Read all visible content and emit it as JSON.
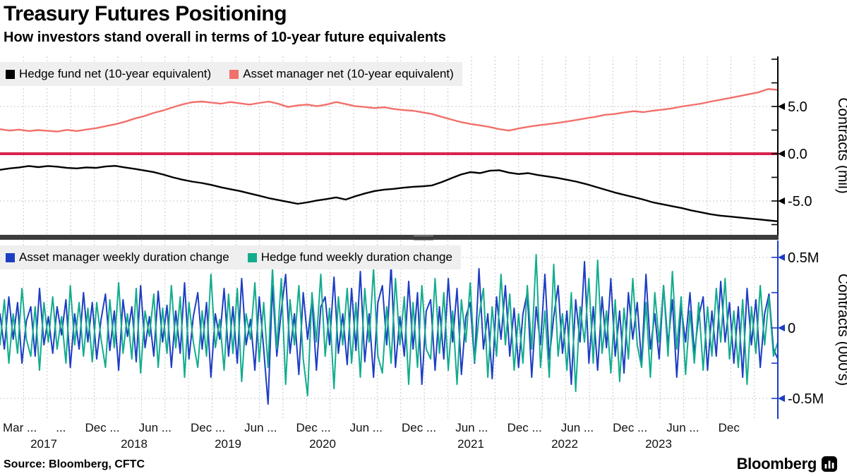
{
  "header": {
    "title": "Treasury Futures Positioning",
    "subtitle": "How investors stand overall in terms of 10-year future equivalents"
  },
  "footer": {
    "source": "Source: Bloomberg, CFTC",
    "brand": "Bloomberg",
    "brand_icon": "bloomberg-chart-icon"
  },
  "colors": {
    "zero_line_red": "#d8234d",
    "hedge_fund_black": "#000000",
    "asset_manager_salmon": "#f2706b",
    "asset_manager_blue": "#1d3dc4",
    "hedge_fund_teal": "#12ac8d",
    "grid": "#c9c9c9",
    "legend_bg": "#efefef",
    "separator": "#3c3c3c"
  },
  "x_axis": {
    "tick_labels": [
      "Mar ...",
      "...",
      "Dec ...",
      "Jun ...",
      "Dec ...",
      "Jun ...",
      "Dec ...",
      "Jun ...",
      "Dec ...",
      "Jun ...",
      "Dec ...",
      "Jun ...",
      "Dec ...",
      "Jun ...",
      "Dec"
    ],
    "years": [
      {
        "label": "2017",
        "x": 62
      },
      {
        "label": "2018",
        "x": 190
      },
      {
        "label": "2019",
        "x": 323
      },
      {
        "label": "2020",
        "x": 457
      },
      {
        "label": "2021",
        "x": 667
      },
      {
        "label": "2022",
        "x": 800
      },
      {
        "label": "2023",
        "x": 933
      }
    ],
    "range_note": "Mar 2017 - Dec 2023"
  },
  "chart_data": [
    {
      "type": "line",
      "panel": "top",
      "ylabel": "Contracts (mil)",
      "ylim": [
        -8.58,
        10.3
      ],
      "yticks": [
        {
          "label": "5.0",
          "value": 5
        },
        {
          "label": "0.0",
          "value": 0
        },
        {
          "label": "-5.0",
          "value": -5
        }
      ],
      "minor_tick_step": 2.5,
      "grid_values": [
        5,
        -5
      ],
      "zero_line": {
        "value": 0,
        "color": "#d8234d",
        "width": 4
      },
      "axis_color": "#000000",
      "legend_position": "top-left",
      "x_start": "2017-03",
      "x_end": "2023-12",
      "x_step": "monthly",
      "series": [
        {
          "name": "Hedge fund net (10-year equivalent)",
          "color": "#000000",
          "width": 2.4,
          "values": [
            -1.7,
            -1.55,
            -1.45,
            -1.3,
            -1.42,
            -1.3,
            -1.37,
            -1.5,
            -1.55,
            -1.45,
            -1.5,
            -1.35,
            -1.28,
            -1.45,
            -1.6,
            -1.77,
            -1.95,
            -2.2,
            -2.5,
            -2.75,
            -2.95,
            -3.1,
            -3.3,
            -3.55,
            -3.75,
            -3.95,
            -4.2,
            -4.45,
            -4.7,
            -4.9,
            -5.1,
            -5.3,
            -5.15,
            -4.95,
            -4.8,
            -4.62,
            -4.85,
            -4.5,
            -4.2,
            -3.95,
            -3.8,
            -3.72,
            -3.6,
            -3.5,
            -3.45,
            -3.35,
            -3.0,
            -2.6,
            -2.2,
            -1.95,
            -2.05,
            -1.8,
            -1.75,
            -2.0,
            -2.15,
            -2.05,
            -2.25,
            -2.4,
            -2.55,
            -2.75,
            -2.95,
            -3.2,
            -3.5,
            -3.8,
            -4.1,
            -4.35,
            -4.6,
            -4.85,
            -5.15,
            -5.35,
            -5.55,
            -5.75,
            -6.0,
            -6.2,
            -6.4,
            -6.55,
            -6.65,
            -6.75,
            -6.85,
            -6.95,
            -7.05,
            -7.15
          ]
        },
        {
          "name": "Asset manager net (10-year equivalent)",
          "color": "#f2706b",
          "width": 2.4,
          "values": [
            2.6,
            2.45,
            2.55,
            2.4,
            2.5,
            2.42,
            2.35,
            2.52,
            2.4,
            2.56,
            2.7,
            2.92,
            3.12,
            3.38,
            3.72,
            3.98,
            4.32,
            4.58,
            4.92,
            5.22,
            5.45,
            5.52,
            5.42,
            5.3,
            5.47,
            5.33,
            5.2,
            5.37,
            5.52,
            5.28,
            4.95,
            5.12,
            5.2,
            5.03,
            5.2,
            5.47,
            5.25,
            5.03,
            4.95,
            4.83,
            4.92,
            4.73,
            4.62,
            4.55,
            4.38,
            4.2,
            3.9,
            3.62,
            3.35,
            3.15,
            3.0,
            2.83,
            2.6,
            2.45,
            2.67,
            2.85,
            3.0,
            3.12,
            3.25,
            3.4,
            3.57,
            3.75,
            3.9,
            4.12,
            4.2,
            4.37,
            4.5,
            4.4,
            4.55,
            4.67,
            4.8,
            5.0,
            5.15,
            5.3,
            5.52,
            5.7,
            5.9,
            6.1,
            6.3,
            6.5,
            6.85,
            6.75
          ]
        }
      ]
    },
    {
      "type": "line",
      "panel": "bottom",
      "ylabel": "Contracts (000's)",
      "ylim": [
        -0.645,
        0.62
      ],
      "yticks": [
        {
          "label": "0.5M",
          "value": 0.5
        },
        {
          "label": "0",
          "value": 0
        },
        {
          "label": "-0.5M",
          "value": -0.5
        }
      ],
      "minor_tick_step": 0.25,
      "grid_values": [
        0.5,
        0,
        -0.5
      ],
      "zero_line": null,
      "axis_color": "#1d3dc4",
      "legend_position": "top-left",
      "x_start": "2017-03",
      "x_end": "2023-12",
      "x_step": "biweekly",
      "series": [
        {
          "name": "Asset manager weekly duration change",
          "color": "#1d3dc4",
          "width": 2,
          "values": [
            0.1,
            -0.15,
            0.22,
            -0.08,
            0.18,
            -0.25,
            0.05,
            0.15,
            -0.2,
            0.28,
            -0.12,
            0.08,
            -0.18,
            0.15,
            -0.05,
            0.2,
            -0.28,
            0.1,
            -0.15,
            0.25,
            -0.1,
            0.18,
            -0.22,
            0.06,
            0.24,
            -0.16,
            0.12,
            -0.3,
            0.2,
            -0.06,
            0.15,
            -0.24,
            0.3,
            -0.14,
            0.08,
            -0.2,
            0.26,
            -0.1,
            0.16,
            -0.28,
            0.12,
            -0.18,
            0.32,
            -0.22,
            0.08,
            0.25,
            -0.15,
            0.18,
            -0.35,
            0.1,
            -0.08,
            0.28,
            -0.2,
            0.15,
            -0.25,
            0.35,
            -0.12,
            0.06,
            -0.3,
            0.22,
            -0.15,
            -0.54,
            0.3,
            -0.2,
            0.12,
            0.38,
            -0.18,
            0.1,
            -0.33,
            0.25,
            -0.08,
            0.2,
            -0.3,
            0.15,
            0.22,
            -0.12,
            0.36,
            -0.18,
            0.1,
            -0.26,
            0.28,
            -0.16,
            0.4,
            -0.24,
            0.1,
            -0.35,
            0.18,
            0.3,
            -0.12,
            0.45,
            -0.28,
            0.08,
            -0.2,
            0.33,
            -0.15,
            0.25,
            -0.4,
            0.12,
            0.2,
            -0.3,
            0.15,
            -0.22,
            0.35,
            -0.1,
            0.28,
            -0.33,
            0.08,
            0.18,
            -0.25,
            0.42,
            -0.15,
            0.1,
            -0.36,
            0.22,
            -0.08,
            0.3,
            -0.2,
            0.14,
            -0.28,
            0.1,
            0.25,
            -0.35,
            0.15,
            -0.12,
            0.38,
            -0.22,
            0.08,
            0.3,
            -0.18,
            0.12,
            -0.4,
            0.2,
            -0.1,
            0.47,
            -0.25,
            0.15,
            -0.3,
            0.22,
            -0.14,
            0.35,
            -0.2,
            0.12,
            -0.32,
            0.25,
            -0.08,
            0.18,
            -0.26,
            0.38,
            -0.15,
            0.1,
            -0.22,
            0.3,
            -0.12,
            0.2,
            -0.35,
            0.15,
            -0.1,
            0.25,
            -0.18,
            0.08,
            0.22,
            -0.3,
            0.12,
            -0.2,
            0.33,
            -0.1,
            0.18,
            -0.25,
            0.15,
            -0.35,
            0.28,
            -0.12,
            0.2,
            -0.28,
            0.1,
            0.24,
            -0.15,
            -0.22
          ]
        },
        {
          "name": "Hedge fund weekly duration change",
          "color": "#12ac8d",
          "width": 2,
          "values": [
            -0.12,
            0.2,
            -0.25,
            0.1,
            -0.18,
            0.28,
            -0.08,
            -0.2,
            0.15,
            -0.3,
            0.18,
            -0.1,
            0.22,
            -0.15,
            0.08,
            -0.25,
            0.3,
            -0.12,
            0.18,
            -0.2,
            0.14,
            -0.24,
            0.18,
            -0.08,
            -0.28,
            0.2,
            -0.14,
            0.32,
            -0.18,
            0.1,
            -0.22,
            0.28,
            -0.32,
            0.12,
            -0.06,
            0.24,
            -0.28,
            0.14,
            -0.18,
            0.3,
            -0.14,
            0.22,
            -0.35,
            0.18,
            -0.1,
            -0.28,
            0.12,
            -0.2,
            0.38,
            -0.14,
            0.06,
            -0.3,
            0.24,
            -0.18,
            0.28,
            -0.38,
            0.1,
            -0.08,
            0.32,
            -0.24,
            0.18,
            -0.28,
            0.42,
            -0.15,
            0.35,
            -0.4,
            0.2,
            -0.12,
            0.3,
            -0.22,
            -0.48,
            0.25,
            -0.1,
            0.38,
            -0.2,
            0.14,
            -0.43,
            0.22,
            -0.12,
            0.28,
            -0.25,
            0.18,
            -0.35,
            0.28,
            -0.1,
            0.42,
            -0.2,
            -0.32,
            0.15,
            -0.25,
            0.35,
            -0.12,
            0.22,
            -0.4,
            0.18,
            -0.28,
            0.3,
            -0.15,
            -0.22,
            0.35,
            -0.18,
            0.25,
            -0.3,
            0.12,
            -0.4,
            0.2,
            -0.1,
            0.32,
            -0.24,
            0.08,
            0.28,
            -0.35,
            0.15,
            -0.2,
            0.38,
            -0.12,
            0.24,
            -0.3,
            0.1,
            -0.25,
            0.3,
            -0.15,
            0.52,
            -0.28,
            0.12,
            -0.35,
            0.45,
            -0.2,
            0.1,
            -0.3,
            0.25,
            -0.45,
            0.15,
            -0.1,
            0.35,
            -0.25,
            0.48,
            -0.18,
            0.12,
            -0.32,
            0.2,
            -0.38,
            0.14,
            -0.22,
            0.35,
            -0.12,
            -0.28,
            0.18,
            -0.35,
            0.25,
            -0.1,
            0.3,
            -0.2,
            0.4,
            -0.15,
            0.22,
            -0.33,
            0.12,
            -0.25,
            0.18,
            -0.3,
            0.15,
            -0.2,
            0.28,
            -0.1,
            0.35,
            -0.22,
            0.12,
            -0.28,
            0.2,
            -0.4,
            0.15,
            -0.18,
            0.3,
            -0.12,
            0.22,
            -0.2,
            -0.1
          ]
        }
      ]
    }
  ]
}
